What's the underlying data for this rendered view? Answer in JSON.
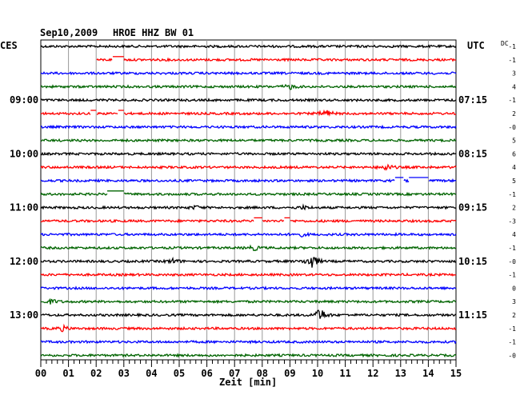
{
  "header": {
    "date": "Sep10,2009",
    "station": "HROE HHZ BW 01",
    "left_timezone": "CES",
    "right_timezone": "UTC",
    "offset_header": "DC"
  },
  "chart_data": {
    "type": "line",
    "title": "Sep10,2009   HROE HHZ BW 01",
    "xlabel": "Zeit [min]",
    "xlim": [
      0,
      15
    ],
    "x_tick_labels": [
      "00",
      "01",
      "02",
      "03",
      "04",
      "05",
      "06",
      "07",
      "08",
      "09",
      "10",
      "11",
      "12",
      "13",
      "14",
      "15"
    ],
    "grid": true,
    "traces_per_hour": 4,
    "trace_count": 24,
    "trace_colors": [
      "#000000",
      "#ff0000",
      "#0000ff",
      "#006400"
    ],
    "left_hour_labels": [
      {
        "trace": 4,
        "label": "09:00"
      },
      {
        "trace": 8,
        "label": "10:00"
      },
      {
        "trace": 12,
        "label": "11:00"
      },
      {
        "trace": 16,
        "label": "12:00"
      },
      {
        "trace": 20,
        "label": "13:00"
      }
    ],
    "right_utc_labels": [
      {
        "trace": 4,
        "label": "07:15"
      },
      {
        "trace": 8,
        "label": "08:15"
      },
      {
        "trace": 12,
        "label": "09:15"
      },
      {
        "trace": 16,
        "label": "10:15"
      },
      {
        "trace": 20,
        "label": "11:15"
      }
    ],
    "dc_offsets": [
      "-1",
      "-1",
      "3",
      "4",
      "-1",
      "2",
      "-0",
      "5",
      "6",
      "4",
      "5",
      "-1",
      "2",
      "-3",
      "4",
      "-1",
      "-0",
      "-1",
      "0",
      "3",
      "2",
      "-1",
      "-1",
      "-0"
    ],
    "gaps": [
      {
        "trace": 1,
        "from": 0,
        "to": 2.0
      },
      {
        "trace": 1,
        "from": 2.6,
        "to": 3.0
      },
      {
        "trace": 5,
        "from": 1.8,
        "to": 2.0
      },
      {
        "trace": 5,
        "from": 2.8,
        "to": 3.0
      },
      {
        "trace": 10,
        "from": 12.8,
        "to": 13.1
      },
      {
        "trace": 10,
        "from": 13.3,
        "to": 14.0
      },
      {
        "trace": 11,
        "from": 2.4,
        "to": 3.0
      },
      {
        "trace": 13,
        "from": 7.7,
        "to": 8.0
      },
      {
        "trace": 13,
        "from": 8.8,
        "to": 9.0
      }
    ],
    "events": [
      {
        "trace": 3,
        "minute": 9.0,
        "amplitude": 3
      },
      {
        "trace": 5,
        "minute": 10.3,
        "amplitude": 5
      },
      {
        "trace": 9,
        "minute": 12.5,
        "amplitude": 4
      },
      {
        "trace": 12,
        "minute": 5.6,
        "amplitude": 2
      },
      {
        "trace": 12,
        "minute": 9.5,
        "amplitude": 2
      },
      {
        "trace": 14,
        "minute": 9.4,
        "amplitude": 2
      },
      {
        "trace": 15,
        "minute": 7.7,
        "amplitude": 3
      },
      {
        "trace": 16,
        "minute": 4.8,
        "amplitude": 3
      },
      {
        "trace": 16,
        "minute": 9.8,
        "amplitude": 10
      },
      {
        "trace": 19,
        "minute": 0.4,
        "amplitude": 3
      },
      {
        "trace": 20,
        "minute": 10.1,
        "amplitude": 9
      },
      {
        "trace": 21,
        "minute": 0.8,
        "amplitude": 3
      }
    ]
  }
}
